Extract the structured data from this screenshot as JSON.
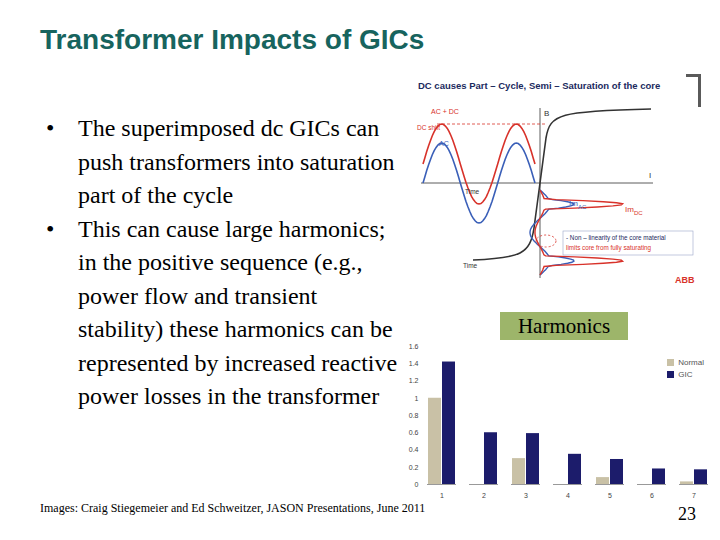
{
  "slide": {
    "title": "Transformer Impacts of GICs",
    "bullets": [
      "The superimposed dc GICs can push transformers into saturation part of the cycle",
      "This can cause large harmonics; in the positive sequence (e.g., power flow and transient stability) these harmonics can be represented by increased reactive power losses in the transformer"
    ],
    "caption": "Images: Craig Stiegemeier and Ed Schweitzer, JASON Presentations, June 2011",
    "page_number": "23"
  },
  "figure": {
    "title": "DC causes Part – Cycle, Semi – Saturation of the core",
    "labels": {
      "ac_dc": "AC + DC",
      "dc_shift": "DC shift",
      "ac": "AC",
      "b_axis": "B",
      "i_axis": "I",
      "time_upper": "Time",
      "time_lower": "Time",
      "im_ac": {
        "text": "Im",
        "sub": "AC"
      },
      "im_dc": {
        "text": "Im",
        "sub": "DC"
      }
    },
    "note": [
      "- Non – linearity of the core material",
      "limits core from fully saturating"
    ],
    "logo": "ABB"
  },
  "chart_data": {
    "type": "bar",
    "title": "Harmonics",
    "categories": [
      "1",
      "2",
      "3",
      "4",
      "5",
      "6",
      "7"
    ],
    "series": [
      {
        "name": "Normal",
        "color": "#c9c1a6",
        "values": [
          1.0,
          0,
          0.3,
          0,
          0.08,
          0,
          0.03
        ]
      },
      {
        "name": "GIC",
        "color": "#1c1c6b",
        "values": [
          1.42,
          0.6,
          0.59,
          0.35,
          0.29,
          0.18,
          0.17
        ]
      }
    ],
    "ylim": [
      0,
      1.6
    ],
    "yticks": [
      0,
      0.2,
      0.4,
      0.6,
      0.8,
      1,
      1.2,
      1.4,
      1.6
    ],
    "legend": "top-right",
    "grid": false
  }
}
